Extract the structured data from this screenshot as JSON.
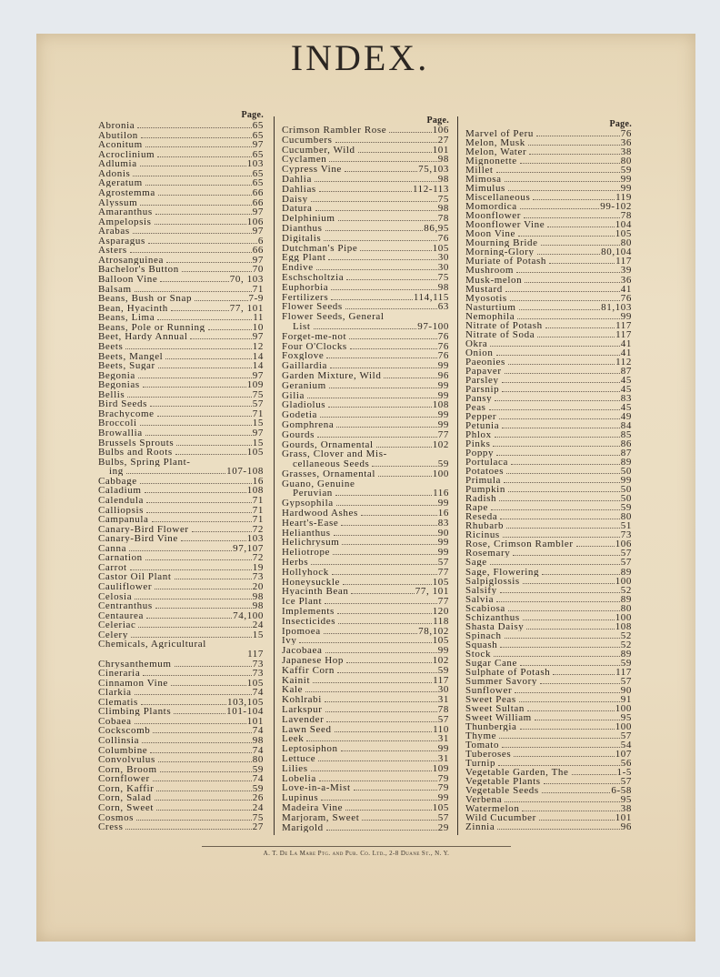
{
  "title": "INDEX.",
  "page_header": "Page.",
  "footer": "A. T. De La Mare Ptg. and Pub. Co. Ltd., 2-8 Duane St., N. Y.",
  "columns": [
    [
      {
        "name": "Abronia",
        "page": "65"
      },
      {
        "name": "Abutilon",
        "page": "65"
      },
      {
        "name": "Aconitum",
        "page": "97"
      },
      {
        "name": "Acroclinium",
        "page": "65"
      },
      {
        "name": "Adlumia",
        "page": "103"
      },
      {
        "name": "Adonis",
        "page": "65"
      },
      {
        "name": "Ageratum",
        "page": "65"
      },
      {
        "name": "Agrostemma",
        "page": "66"
      },
      {
        "name": "Alyssum",
        "page": "66"
      },
      {
        "name": "Amaranthus",
        "page": "97"
      },
      {
        "name": "Ampelopsis",
        "page": "106"
      },
      {
        "name": "Arabas",
        "page": "97"
      },
      {
        "name": "Asparagus",
        "page": "6"
      },
      {
        "name": "Asters",
        "page": "66"
      },
      {
        "name": "Atrosanguinea",
        "page": "97"
      },
      {
        "name": "Bachelor's Button",
        "page": "70"
      },
      {
        "name": "Balloon Vine",
        "page": "70, 103"
      },
      {
        "name": "Balsam",
        "page": "71"
      },
      {
        "name": "Beans, Bush or Snap",
        "page": "7-9"
      },
      {
        "name": "Bean, Hyacinth",
        "page": "77, 101"
      },
      {
        "name": "Beans, Lima",
        "page": "11"
      },
      {
        "name": "Beans, Pole or Running",
        "page": "10"
      },
      {
        "name": "Beet, Hardy Annual",
        "page": "97"
      },
      {
        "name": "Beets",
        "page": "12"
      },
      {
        "name": "Beets, Mangel",
        "page": "14"
      },
      {
        "name": "Beets, Sugar",
        "page": "14"
      },
      {
        "name": "Begonia",
        "page": "97"
      },
      {
        "name": "Begonias",
        "page": "109"
      },
      {
        "name": "Bellis",
        "page": "75"
      },
      {
        "name": "Bird Seeds",
        "page": "57"
      },
      {
        "name": "Brachycome",
        "page": "71"
      },
      {
        "name": "Broccoli",
        "page": "15"
      },
      {
        "name": "Browallia",
        "page": "97"
      },
      {
        "name": "Brussels Sprouts",
        "page": "15"
      },
      {
        "name": "Bulbs and Roots",
        "page": "105"
      },
      {
        "name": "Bulbs, Spring Plant-",
        "cont": "ing",
        "page": "107-108"
      },
      {
        "name": "Cabbage",
        "page": "16"
      },
      {
        "name": "Caladium",
        "page": "108"
      },
      {
        "name": "Calendula",
        "page": "71"
      },
      {
        "name": "Calliopsis",
        "page": "71"
      },
      {
        "name": "Campanula",
        "page": "71"
      },
      {
        "name": "Canary-Bird Flower",
        "page": "72"
      },
      {
        "name": "Canary-Bird Vine",
        "page": "103"
      },
      {
        "name": "Canna",
        "page": "97,107"
      },
      {
        "name": "Carnation",
        "page": "72"
      },
      {
        "name": "Carrot",
        "page": "19"
      },
      {
        "name": "Castor Oil Plant",
        "page": "73"
      },
      {
        "name": "Cauliflower",
        "page": "20"
      },
      {
        "name": "Celosia",
        "page": "98"
      },
      {
        "name": "Centranthus",
        "page": "98"
      },
      {
        "name": "Centaurea",
        "page": "74,100"
      },
      {
        "name": "Celeriac",
        "page": "24"
      },
      {
        "name": "Celery",
        "page": "15"
      },
      {
        "name": "Chemicals, Agricultural",
        "cont": "",
        "page": "117"
      },
      {
        "name": "Chrysanthemum",
        "page": "73"
      },
      {
        "name": "Cineraria",
        "page": "73"
      },
      {
        "name": "Cinnamon Vine",
        "page": "105"
      },
      {
        "name": "Clarkia",
        "page": "74"
      },
      {
        "name": "Clematis",
        "page": "103,105"
      },
      {
        "name": "Climbing Plants",
        "page": "101-104"
      },
      {
        "name": "Cobaea",
        "page": "101"
      },
      {
        "name": "Cockscomb",
        "page": "74"
      },
      {
        "name": "Collinsia",
        "page": "98"
      },
      {
        "name": "Columbine",
        "page": "74"
      },
      {
        "name": "Convolvulus",
        "page": "80"
      },
      {
        "name": "Corn, Broom",
        "page": "59"
      },
      {
        "name": "Cornflower",
        "page": "74"
      },
      {
        "name": "Corn, Kaffir",
        "page": "59"
      },
      {
        "name": "Corn, Salad",
        "page": "26"
      },
      {
        "name": "Corn, Sweet",
        "page": "24"
      },
      {
        "name": "Cosmos",
        "page": "75"
      },
      {
        "name": "Cress",
        "page": "27"
      }
    ],
    [
      {
        "name": "Crimson Rambler Rose",
        "page": "106"
      },
      {
        "name": "Cucumbers",
        "page": "27"
      },
      {
        "name": "Cucumber, Wild",
        "page": "101"
      },
      {
        "name": "Cyclamen",
        "page": "98"
      },
      {
        "name": "Cypress Vine",
        "page": "75,103"
      },
      {
        "name": "Dahlia",
        "page": "98"
      },
      {
        "name": "Dahlias",
        "page": "112-113"
      },
      {
        "name": "Daisy",
        "page": "75"
      },
      {
        "name": "Datura",
        "page": "98"
      },
      {
        "name": "Delphinium",
        "page": "78"
      },
      {
        "name": "Dianthus",
        "page": "86,95"
      },
      {
        "name": "Digitalis",
        "page": "76"
      },
      {
        "name": "Dutchman's Pipe",
        "page": "105"
      },
      {
        "name": "Egg Plant",
        "page": "30"
      },
      {
        "name": "Endive",
        "page": "30"
      },
      {
        "name": "Eschscholtzia",
        "page": "75"
      },
      {
        "name": "Euphorbia",
        "page": "98"
      },
      {
        "name": "Fertilizers",
        "page": "114,115"
      },
      {
        "name": "Flower Seeds",
        "page": "63"
      },
      {
        "name": "Flower Seeds, General",
        "cont": "List",
        "page": "97-100"
      },
      {
        "name": "Forget-me-not",
        "page": "76"
      },
      {
        "name": "Four O'Clocks",
        "page": "76"
      },
      {
        "name": "Foxglove",
        "page": "76"
      },
      {
        "name": "Gaillardia",
        "page": "99"
      },
      {
        "name": "Garden Mixture, Wild",
        "page": "96"
      },
      {
        "name": "Geranium",
        "page": "99"
      },
      {
        "name": "Gilia",
        "page": "99"
      },
      {
        "name": "Gladiolus",
        "page": "108"
      },
      {
        "name": "Godetia",
        "page": "99"
      },
      {
        "name": "Gomphrena",
        "page": "99"
      },
      {
        "name": "Gourds",
        "page": "77"
      },
      {
        "name": "Gourds, Ornamental",
        "page": "102"
      },
      {
        "name": "Grass, Clover and Mis-",
        "cont": "cellaneous Seeds",
        "page": "59"
      },
      {
        "name": "Grasses, Ornamental",
        "page": "100"
      },
      {
        "name": "Guano, Genuine",
        "cont": "Peruvian",
        "page": "116"
      },
      {
        "name": "Gypsophila",
        "page": "99"
      },
      {
        "name": "Hardwood Ashes",
        "page": "16"
      },
      {
        "name": "Heart's-Ease",
        "page": "83"
      },
      {
        "name": "Helianthus",
        "page": "90"
      },
      {
        "name": "Helichrysum",
        "page": "99"
      },
      {
        "name": "Heliotrope",
        "page": "99"
      },
      {
        "name": "Herbs",
        "page": "57"
      },
      {
        "name": "Hollyhock",
        "page": "77"
      },
      {
        "name": "Honeysuckle",
        "page": "105"
      },
      {
        "name": "Hyacinth Bean",
        "page": "77, 101"
      },
      {
        "name": "Ice Plant",
        "page": "77"
      },
      {
        "name": "Implements",
        "page": "120"
      },
      {
        "name": "Insecticides",
        "page": "118"
      },
      {
        "name": "Ipomoea",
        "page": "78,102"
      },
      {
        "name": "Ivy",
        "page": "105"
      },
      {
        "name": "Jacobaea",
        "page": "99"
      },
      {
        "name": "Japanese Hop",
        "page": "102"
      },
      {
        "name": "Kaffir Corn",
        "page": "59"
      },
      {
        "name": "Kainit",
        "page": "117"
      },
      {
        "name": "Kale",
        "page": "30"
      },
      {
        "name": "Kohlrabi",
        "page": "31"
      },
      {
        "name": "Larkspur",
        "page": "78"
      },
      {
        "name": "Lavender",
        "page": "57"
      },
      {
        "name": "Lawn Seed",
        "page": "110"
      },
      {
        "name": "Leek",
        "page": "31"
      },
      {
        "name": "Leptosiphon",
        "page": "99"
      },
      {
        "name": "Lettuce",
        "page": "31"
      },
      {
        "name": "Lilies",
        "page": "109"
      },
      {
        "name": "Lobelia",
        "page": "79"
      },
      {
        "name": "Love-in-a-Mist",
        "page": "79"
      },
      {
        "name": "Lupinus",
        "page": "99"
      },
      {
        "name": "Madeira Vine",
        "page": "105"
      },
      {
        "name": "Marjoram, Sweet",
        "page": "57"
      },
      {
        "name": "Marigold",
        "page": "29"
      }
    ],
    [
      {
        "name": "Marvel of Peru",
        "page": "76"
      },
      {
        "name": "Melon, Musk",
        "page": "36"
      },
      {
        "name": "Melon, Water",
        "page": "38"
      },
      {
        "name": "Mignonette",
        "page": "80"
      },
      {
        "name": "Millet",
        "page": "59"
      },
      {
        "name": "Mimosa",
        "page": "99"
      },
      {
        "name": "Mimulus",
        "page": "99"
      },
      {
        "name": "Miscellaneous",
        "page": "119"
      },
      {
        "name": "Momordica",
        "page": "99-102"
      },
      {
        "name": "Moonflower",
        "page": "78"
      },
      {
        "name": "Moonflower Vine",
        "page": "104"
      },
      {
        "name": "Moon Vine",
        "page": "105"
      },
      {
        "name": "Mourning Bride",
        "page": "80"
      },
      {
        "name": "Morning-Glory",
        "page": "80,104"
      },
      {
        "name": "Muriate of Potash",
        "page": "117"
      },
      {
        "name": "Mushroom",
        "page": "39"
      },
      {
        "name": "Musk-melon",
        "page": "36"
      },
      {
        "name": "Mustard",
        "page": "41"
      },
      {
        "name": "Myosotis",
        "page": "76"
      },
      {
        "name": "Nasturtium",
        "page": "81,103"
      },
      {
        "name": "Nemophila",
        "page": "99"
      },
      {
        "name": "Nitrate of Potash",
        "page": "117"
      },
      {
        "name": "Nitrate of Soda",
        "page": "117"
      },
      {
        "name": "Okra",
        "page": "41"
      },
      {
        "name": "Onion",
        "page": "41"
      },
      {
        "name": "Paeonies",
        "page": "112"
      },
      {
        "name": "Papaver",
        "page": "87"
      },
      {
        "name": "Parsley",
        "page": "45"
      },
      {
        "name": "Parsnip",
        "page": "45"
      },
      {
        "name": "Pansy",
        "page": "83"
      },
      {
        "name": "Peas",
        "page": "45"
      },
      {
        "name": "Pepper",
        "page": "49"
      },
      {
        "name": "Petunia",
        "page": "84"
      },
      {
        "name": "Phlox",
        "page": "85"
      },
      {
        "name": "Pinks",
        "page": "86"
      },
      {
        "name": "Poppy",
        "page": "87"
      },
      {
        "name": "Portulaca",
        "page": "89"
      },
      {
        "name": "Potatoes",
        "page": "50"
      },
      {
        "name": "Primula",
        "page": "99"
      },
      {
        "name": "Pumpkin",
        "page": "50"
      },
      {
        "name": "Radish",
        "page": "50"
      },
      {
        "name": "Rape",
        "page": "59"
      },
      {
        "name": "Reseda",
        "page": "80"
      },
      {
        "name": "Rhubarb",
        "page": "51"
      },
      {
        "name": "Ricinus",
        "page": "73"
      },
      {
        "name": "Rose, Crimson Rambler",
        "page": "106"
      },
      {
        "name": "Rosemary",
        "page": "57"
      },
      {
        "name": "Sage",
        "page": "57"
      },
      {
        "name": "Sage, Flowering",
        "page": "89"
      },
      {
        "name": "Salpiglossis",
        "page": "100"
      },
      {
        "name": "Salsify",
        "page": "52"
      },
      {
        "name": "Salvia",
        "page": "89"
      },
      {
        "name": "Scabiosa",
        "page": "80"
      },
      {
        "name": "Schizanthus",
        "page": "100"
      },
      {
        "name": "Shasta Daisy",
        "page": "108"
      },
      {
        "name": "Spinach",
        "page": "52"
      },
      {
        "name": "Squash",
        "page": "52"
      },
      {
        "name": "Stock",
        "page": "89"
      },
      {
        "name": "Sugar Cane",
        "page": "59"
      },
      {
        "name": "Sulphate of Potash",
        "page": "117"
      },
      {
        "name": "Summer Savory",
        "page": "57"
      },
      {
        "name": "Sunflower",
        "page": "90"
      },
      {
        "name": "Sweet Peas",
        "page": "91"
      },
      {
        "name": "Sweet Sultan",
        "page": "100"
      },
      {
        "name": "Sweet William",
        "page": "95"
      },
      {
        "name": "Thunbergia",
        "page": "100"
      },
      {
        "name": "Thyme",
        "page": "57"
      },
      {
        "name": "Tomato",
        "page": "54"
      },
      {
        "name": "Tuberoses",
        "page": "107"
      },
      {
        "name": "Turnip",
        "page": "56"
      },
      {
        "name": "Vegetable Garden, The",
        "page": "1-5"
      },
      {
        "name": "Vegetable Plants",
        "page": "57"
      },
      {
        "name": "Vegetable Seeds",
        "page": "6-58"
      },
      {
        "name": "Verbena",
        "page": "95"
      },
      {
        "name": "Watermelon",
        "page": "38"
      },
      {
        "name": "Wild Cucumber",
        "page": "101"
      },
      {
        "name": "Zinnia",
        "page": "96"
      }
    ]
  ]
}
